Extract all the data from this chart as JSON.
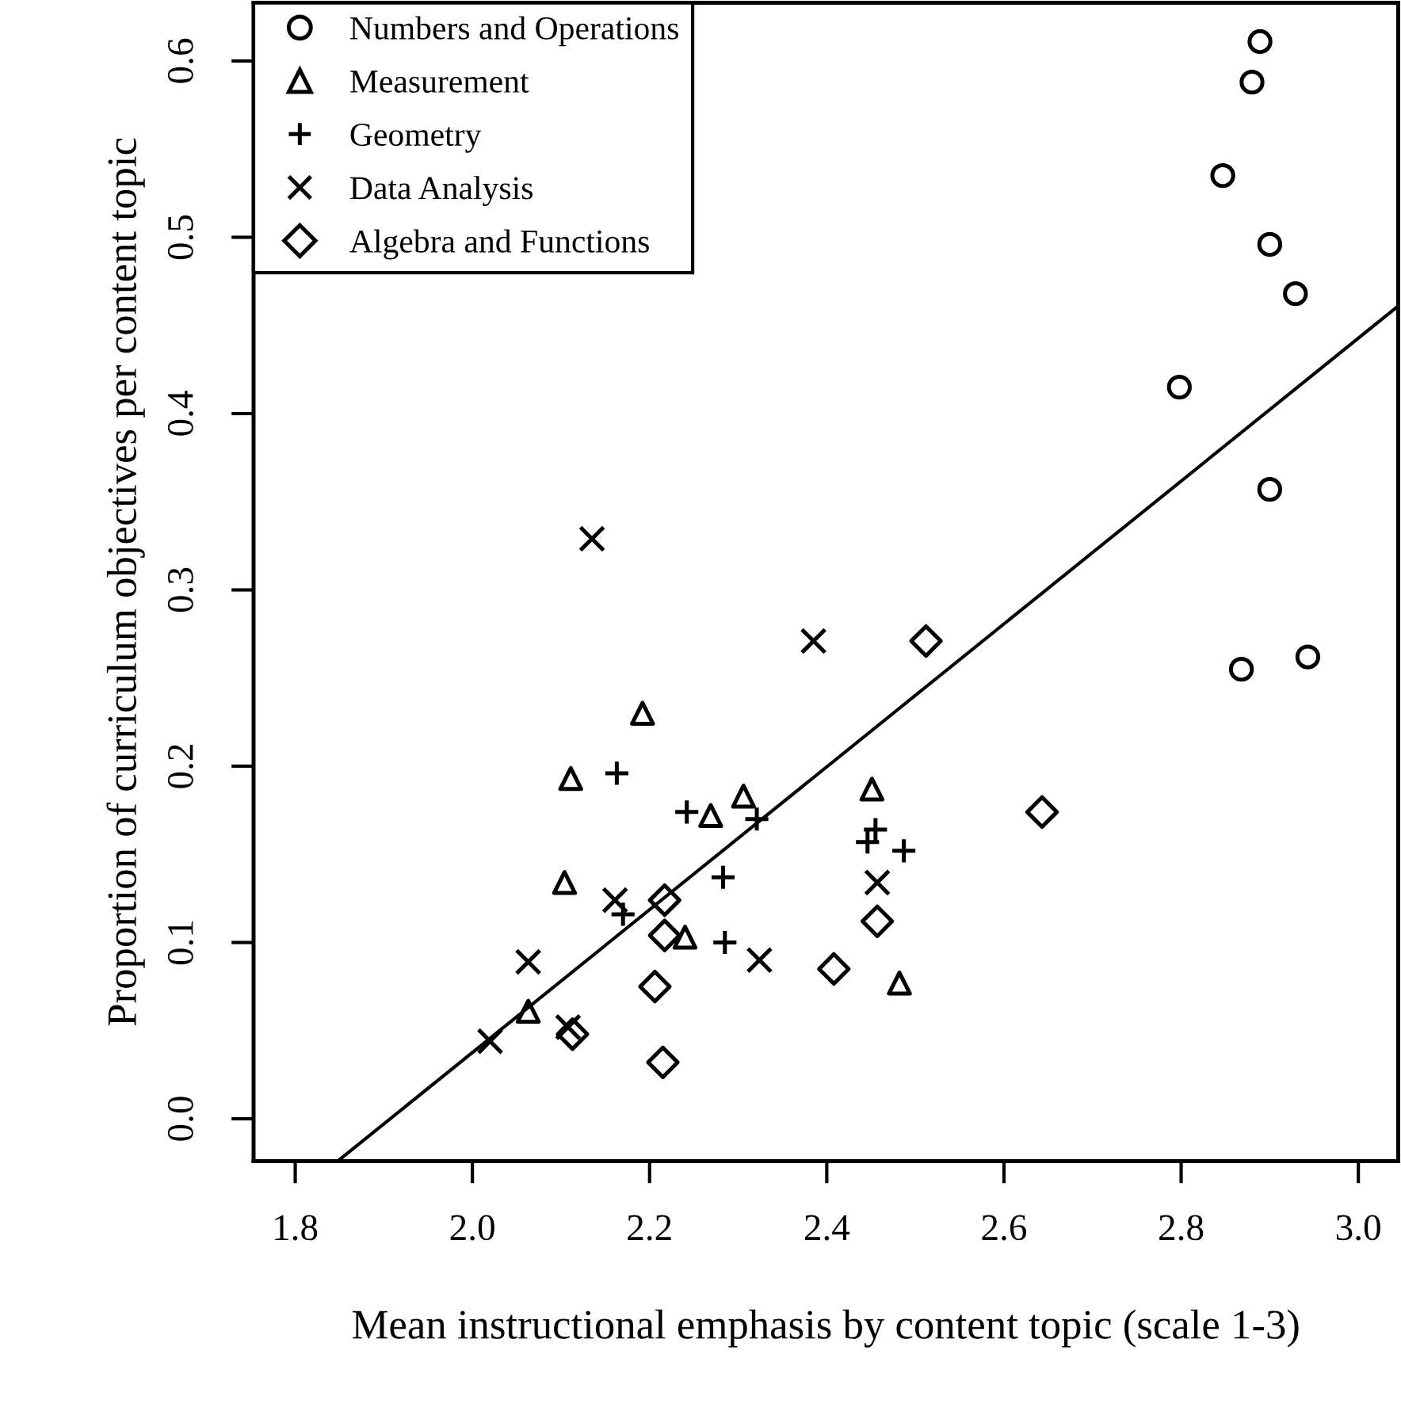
{
  "chart_data": {
    "type": "scatter",
    "xlabel": "Mean instructional emphasis by content topic (scale 1-3)",
    "ylabel": "Proportion of curriculum objectives per content topic",
    "xlim": [
      1.753,
      3.045
    ],
    "ylim": [
      -0.024,
      0.633
    ],
    "xticks": [
      {
        "value": 1.8,
        "label": "1.8"
      },
      {
        "value": 2.0,
        "label": "2.0"
      },
      {
        "value": 2.2,
        "label": "2.2"
      },
      {
        "value": 2.4,
        "label": "2.4"
      },
      {
        "value": 2.6,
        "label": "2.6"
      },
      {
        "value": 2.8,
        "label": "2.8"
      },
      {
        "value": 3.0,
        "label": "3.0"
      }
    ],
    "yticks": [
      {
        "value": 0.0,
        "label": "0.0"
      },
      {
        "value": 0.1,
        "label": "0.1"
      },
      {
        "value": 0.2,
        "label": "0.2"
      },
      {
        "value": 0.3,
        "label": "0.3"
      },
      {
        "value": 0.4,
        "label": "0.4"
      },
      {
        "value": 0.5,
        "label": "0.5"
      },
      {
        "value": 0.6,
        "label": "0.6"
      }
    ],
    "grid": false,
    "legend": "top left",
    "series": [
      {
        "name": "Numbers and Operations",
        "color": "#000000",
        "marker": "circle",
        "x": [
          2.889,
          2.88,
          2.847,
          2.9,
          2.929,
          2.798,
          2.9,
          2.868,
          2.943
        ],
        "values": [
          0.611,
          0.588,
          0.535,
          0.496,
          0.468,
          0.415,
          0.357,
          0.255,
          0.262
        ]
      },
      {
        "name": "Measurement",
        "color": "#000000",
        "marker": "triangle",
        "x": [
          2.192,
          2.111,
          2.269,
          2.306,
          2.451,
          2.104,
          2.24,
          2.482,
          2.063
        ],
        "values": [
          0.23,
          0.193,
          0.172,
          0.183,
          0.187,
          0.134,
          0.103,
          0.077,
          0.061
        ]
      },
      {
        "name": "Geometry",
        "color": "#000000",
        "marker": "plus",
        "x": [
          2.163,
          2.242,
          2.321,
          2.283,
          2.285,
          2.17,
          2.446,
          2.455,
          2.487
        ],
        "values": [
          0.196,
          0.174,
          0.17,
          0.137,
          0.1,
          0.116,
          0.157,
          0.164,
          0.152
        ]
      },
      {
        "name": "Data Analysis",
        "color": "#000000",
        "marker": "cross",
        "x": [
          2.135,
          2.385,
          2.457,
          2.324,
          2.063,
          2.161,
          2.108,
          2.02
        ],
        "values": [
          0.329,
          0.271,
          0.134,
          0.09,
          0.089,
          0.124,
          0.052,
          0.044
        ]
      },
      {
        "name": "Algebra and Functions",
        "color": "#000000",
        "marker": "diamond",
        "x": [
          2.512,
          2.643,
          2.457,
          2.408,
          2.217,
          2.217,
          2.206,
          2.113,
          2.215
        ],
        "values": [
          0.271,
          0.174,
          0.112,
          0.085,
          0.124,
          0.104,
          0.075,
          0.048,
          0.032
        ]
      },
      {
        "type": "line",
        "color": "#000000",
        "marker": "none",
        "x": [
          1.848,
          3.045
        ],
        "values": [
          -0.024,
          0.461
        ]
      }
    ]
  }
}
